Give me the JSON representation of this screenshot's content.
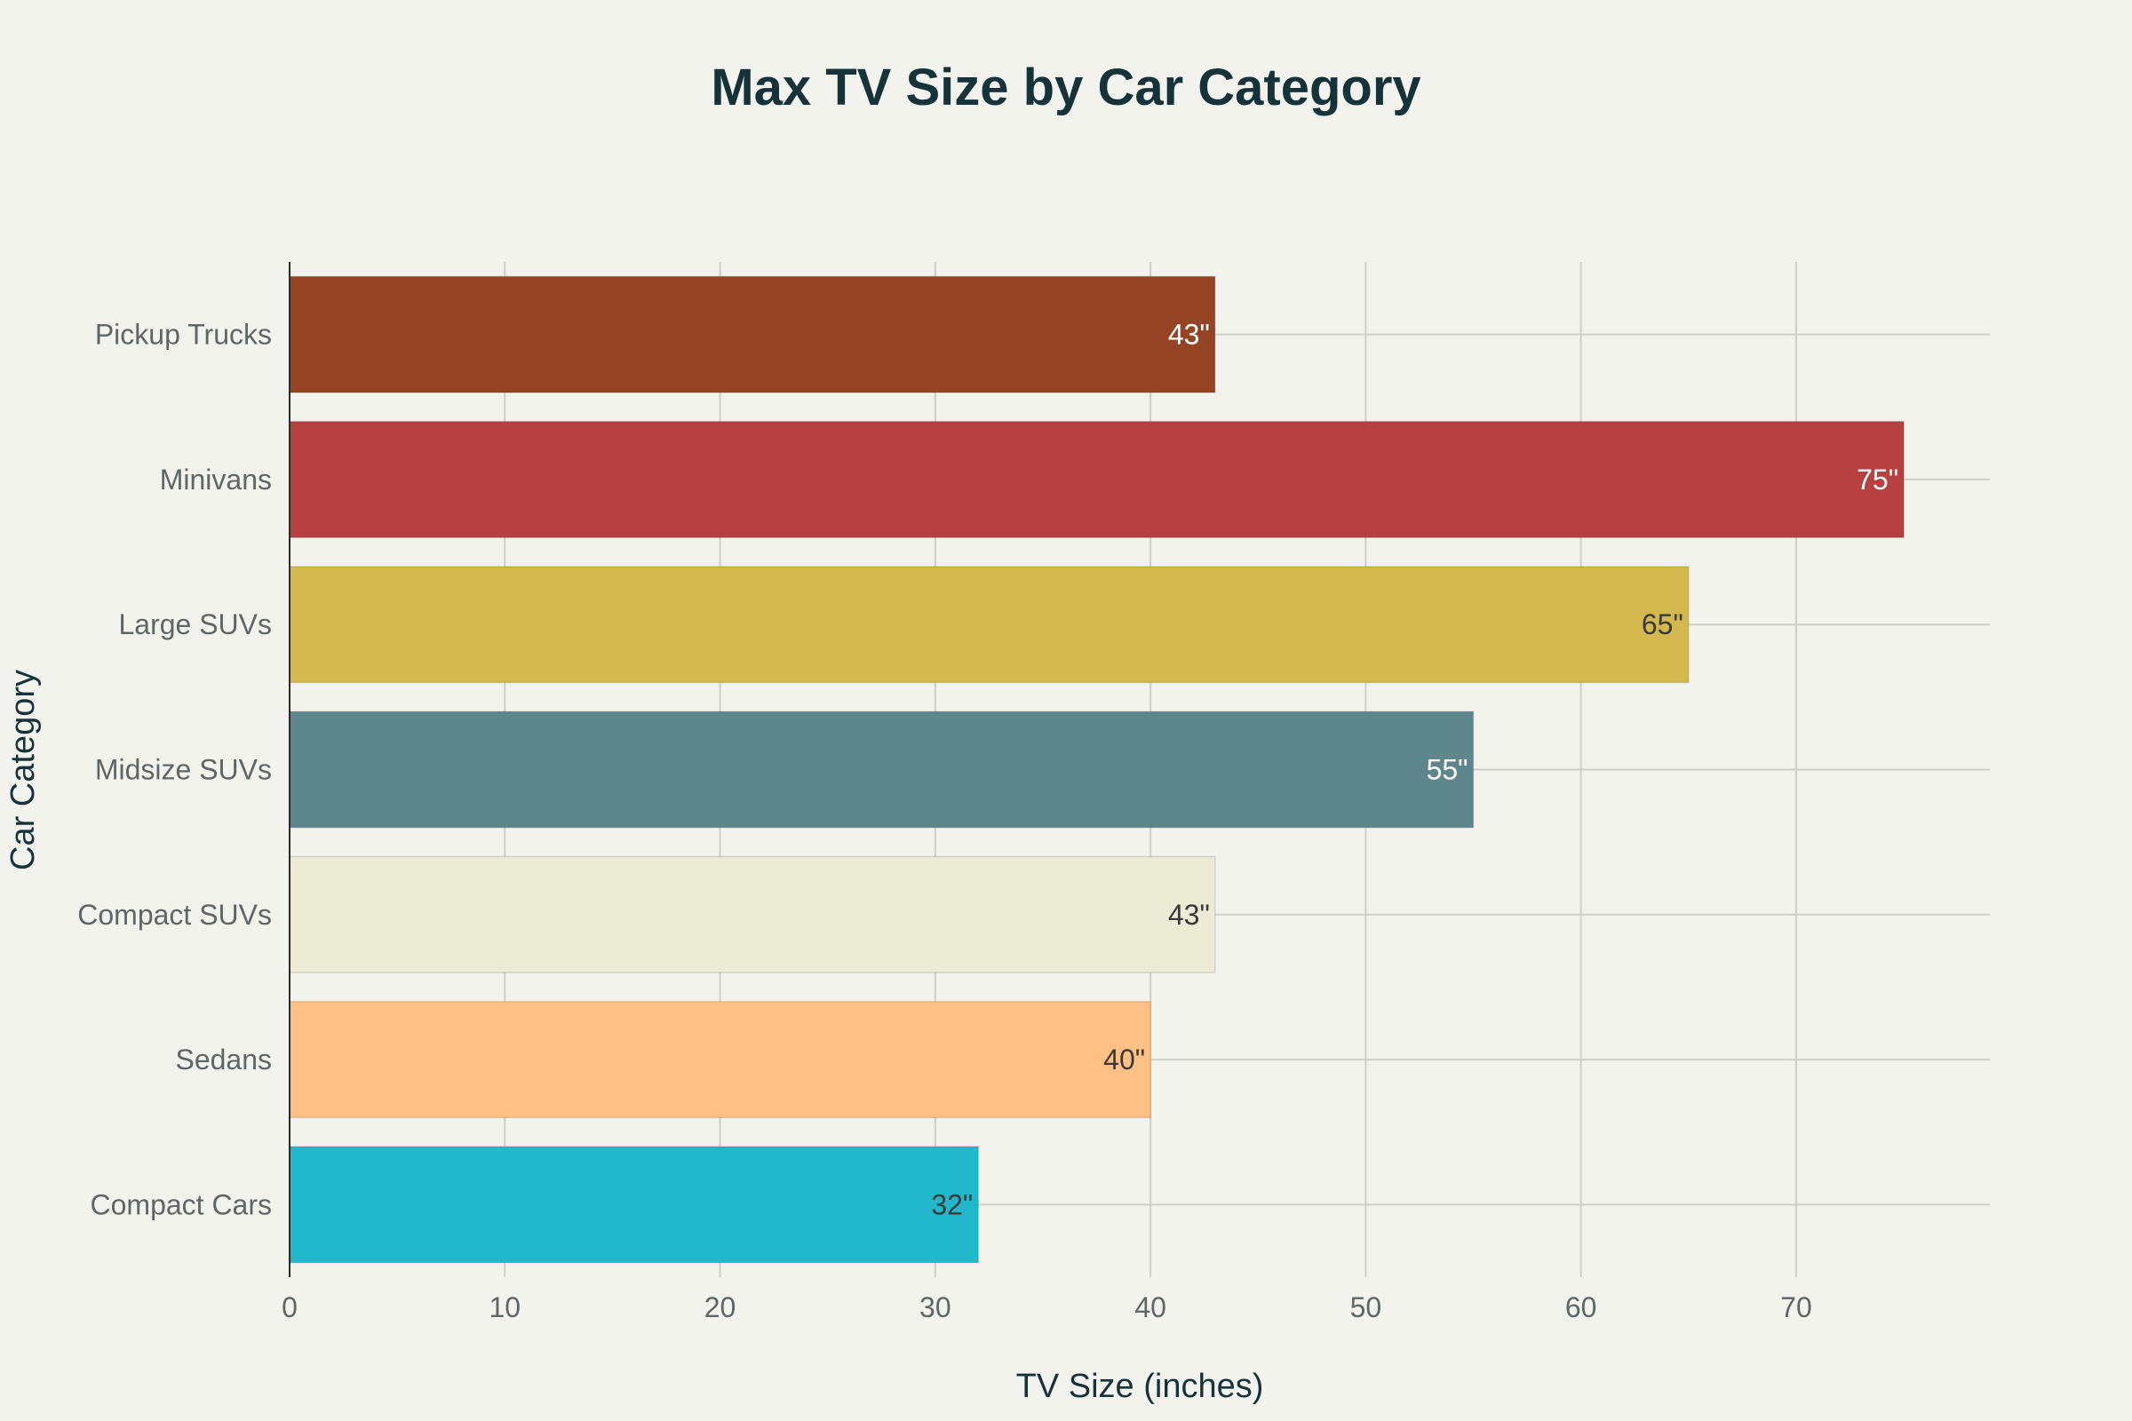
{
  "chart_data": {
    "type": "bar",
    "orientation": "horizontal",
    "title": "Max TV Size by Car Category",
    "xlabel": "TV Size (inches)",
    "ylabel": "Car Category",
    "categories": [
      "Compact Cars",
      "Sedans",
      "Compact SUVs",
      "Midsize SUVs",
      "Large SUVs",
      "Minivans",
      "Pickup Trucks"
    ],
    "values": [
      32,
      40,
      43,
      55,
      65,
      75,
      43
    ],
    "data_labels": [
      "32\"",
      "40\"",
      "43\"",
      "55\"",
      "65\"",
      "75\"",
      "43\""
    ],
    "colors": [
      "#21b8cc",
      "#fec185",
      "#ecebd5",
      "#5e878d",
      "#d3b94d",
      "#b64140",
      "#944425"
    ],
    "label_colors": [
      "#3a3a3a",
      "#3a3a3a",
      "#3a3a3a",
      "#ffffff",
      "#3a3a3a",
      "#ffffff",
      "#ffffff"
    ],
    "x_ticks": [
      0,
      10,
      20,
      30,
      40,
      50,
      60,
      70
    ],
    "xlim": [
      0,
      79
    ],
    "grid": true,
    "legend": "none"
  }
}
